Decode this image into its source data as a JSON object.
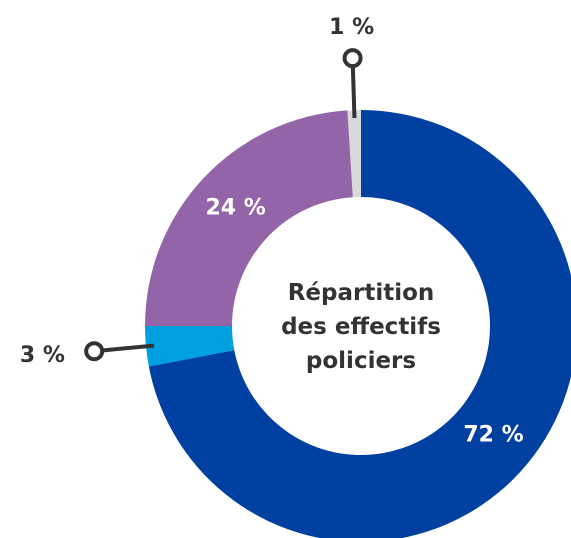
{
  "chart_data": {
    "type": "donut",
    "title": "Répartition des effectifs policiers",
    "categories": [
      null,
      null,
      null,
      null
    ],
    "values": [
      72,
      3,
      24,
      1
    ],
    "value_labels": [
      "72 %",
      "3 %",
      "24 %",
      "1 %"
    ],
    "colors": [
      "#0040a0",
      "#00a0df",
      "#9464a8",
      "#d9d9d9"
    ]
  }
}
